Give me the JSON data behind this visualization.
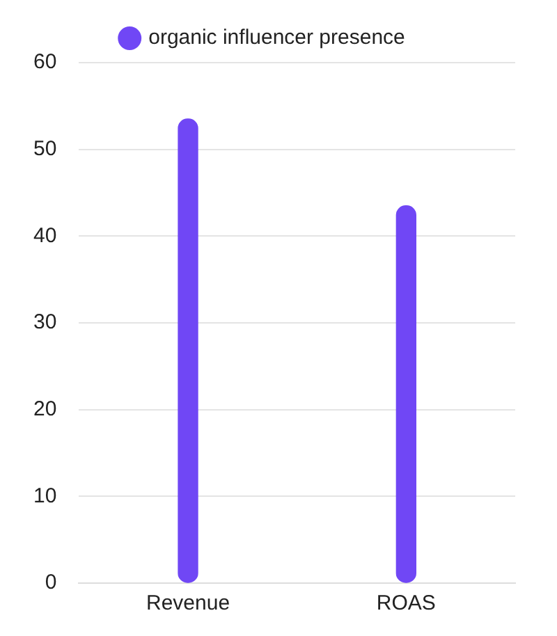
{
  "chart_data": {
    "type": "bar",
    "categories": [
      "Revenue",
      "ROAS"
    ],
    "series": [
      {
        "name": "organic influencer presence",
        "color": "#7047f5",
        "values": [
          53.5,
          43.5
        ]
      }
    ],
    "ylim": [
      0,
      60
    ],
    "yticks": [
      0,
      10,
      20,
      30,
      40,
      50,
      60
    ],
    "grid": "y",
    "legend": "top"
  }
}
